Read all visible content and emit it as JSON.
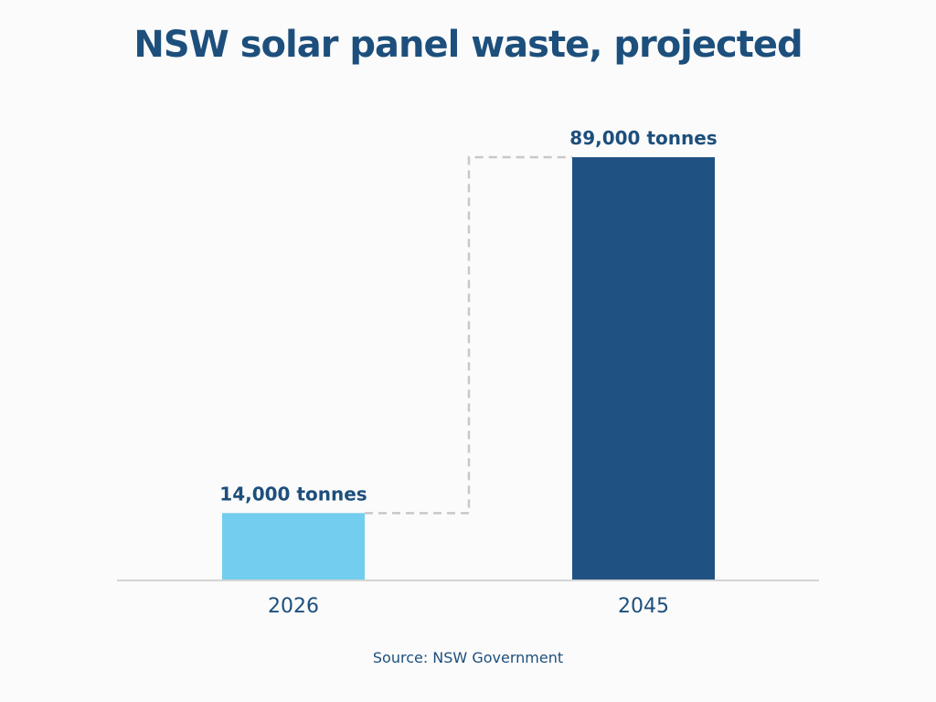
{
  "colors": {
    "title": "#1d4f7c",
    "bar_2026": "#72cdee",
    "bar_2045": "#1f5282",
    "text": "#1d4f7c",
    "axis": "#d4d4d4",
    "connector": "#c8c8c8"
  },
  "chart_data": {
    "type": "bar",
    "title": "NSW solar panel waste, projected",
    "categories": [
      "2026",
      "2045"
    ],
    "values": [
      14000,
      89000
    ],
    "data_labels": [
      "14,000 tonnes",
      "89,000 tonnes"
    ],
    "bar_colors": [
      "#72cdee",
      "#1f5282"
    ],
    "xlabel": "",
    "ylabel": "",
    "ylim": [
      0,
      89000
    ],
    "grid": false,
    "legend": "none",
    "connector": "dashed step line from top of 2026 bar to top of 2045 bar"
  },
  "source": "Source: NSW Government"
}
